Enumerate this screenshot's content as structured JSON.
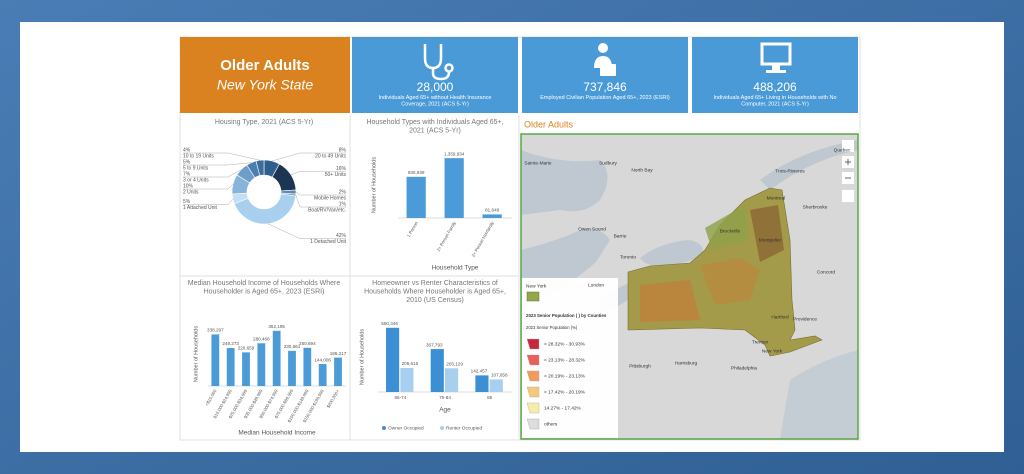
{
  "header": {
    "title": "Older Adults",
    "subtitle": "New York State"
  },
  "kpis": [
    {
      "value": "28,000",
      "label": "Individuals Aged 65+ without Health Insurance Coverage, 2021 (ACS 5-Yr)"
    },
    {
      "value": "737,846",
      "label": "Employed Civilian Population Aged 65+, 2023 (ESRI)"
    },
    {
      "value": "488,206",
      "label": "Individuals Aged 65+ Living in Households with No Computer, 2021 (ACS 5-Yr)"
    }
  ],
  "chart_data": [
    {
      "type": "pie",
      "title": "Housing Type, 2021 (ACS 5-Yr)",
      "categories": [
        "20 to 49 Units",
        "50+ Units",
        "Mobile Homes",
        "Boat/RV/Van/etc.",
        "1 Detached Unit",
        "1 Attached Unit",
        "2 Units",
        "3 or 4 Units",
        "5 to 9 Units",
        "10 to 19 Units"
      ],
      "values": [
        8,
        16,
        2,
        1,
        42,
        5,
        10,
        7,
        5,
        4
      ],
      "value_labels": [
        "8%",
        "16%",
        "2%",
        "1%",
        "42%",
        "5%",
        "10%",
        "7%",
        "5%",
        "4%"
      ],
      "colors": [
        "#2f5f8f",
        "#1c3553",
        "#5b89b5",
        "#7ea6cc",
        "#a9cfee",
        "#c6def2",
        "#88b3da",
        "#6d9dc9",
        "#4c7fb0",
        "#3b6d9e"
      ]
    },
    {
      "type": "bar",
      "title": "Household Types with Individuals Aged 65+, 2021 (ACS 5-Yr)",
      "y_label": "Number of Households",
      "x_label": "Household Type",
      "categories": [
        "1 Person",
        "2+ Person Family",
        "2+ Person Nonfamily"
      ],
      "values": [
        935939,
        1359934,
        81649
      ],
      "value_labels": [
        "935,939",
        "1,359,934",
        "81,649"
      ],
      "color": "#4a9bd8",
      "ylim": [
        0,
        1500000
      ]
    },
    {
      "type": "bar",
      "title": "Median Household Income of Households Where Householder is Aged 65+, 2023 (ESRI)",
      "y_label": "Number of Households",
      "x_label": "Median Household Income",
      "categories": [
        "<$15,000",
        "$15,000-$24,999",
        "$25,000-$34,999",
        "$35,000-$49,999",
        "$50,000-$74,999",
        "$75,000-$99,999",
        "$100,000-$149,999",
        "$150,000-$199,999",
        "$200,000+"
      ],
      "values": [
        338297,
        249273,
        220659,
        280468,
        362195,
        230661,
        250694,
        144006,
        186217
      ],
      "value_labels": [
        "338,297",
        "249,273",
        "220,659",
        "280,468",
        "362,195",
        "230,661",
        "250,694",
        "144,006",
        "186,217"
      ],
      "color": "#4a9bd8",
      "ylim": [
        0,
        420000
      ]
    },
    {
      "type": "bar",
      "title": "Homeowner vs Renter Characteristics of Households Where Householder is Aged 65+, 2010 (US Census)",
      "y_label": "Number of Households",
      "x_label": "Age",
      "categories": [
        "65-74",
        "75-84",
        "85"
      ],
      "series": [
        {
          "name": "Owner Occupied",
          "color": "#3c8fd3",
          "values": [
            550346,
            367793,
            142457
          ],
          "value_labels": [
            "550,346",
            "367,793",
            "142,457"
          ]
        },
        {
          "name": "Renter Occupied",
          "color": "#a7d0f0",
          "values": [
            205615,
            203129,
            107658
          ],
          "value_labels": [
            "205,615",
            "203,129",
            "107,658"
          ]
        }
      ],
      "ylim": [
        0,
        600000
      ],
      "legend": "bottom"
    }
  ],
  "map": {
    "title": "Older Adults",
    "layer": "New York",
    "legend_title": "2023 Senior Population ( ) by Counties",
    "legend_subtitle": "2023 Senior Population (%)",
    "classes": [
      {
        "label": "> 28.32% - 30.93%",
        "color": "#c8283c"
      },
      {
        "label": "> 23.13% - 28.32%",
        "color": "#e8605a"
      },
      {
        "label": "> 20.19% - 23.13%",
        "color": "#f29a5c"
      },
      {
        "label": "> 17.42% - 20.19%",
        "color": "#f6c97a"
      },
      {
        "label": "14.27% - 17.42%",
        "color": "#f8eda4"
      },
      {
        "label": "others",
        "color": "#dddddd"
      }
    ],
    "places": [
      "Sainte-Marie",
      "Sudbury",
      "North Bay",
      "Quebec",
      "Trois-Rivieres",
      "Montreal",
      "Sherbrooke",
      "Owen Sound",
      "Barrie",
      "Toronto",
      "Brockville",
      "Montpelier",
      "London",
      "Concord",
      "Hartford",
      "Providence",
      "New York",
      "Pittsburgh",
      "Harrisburg",
      "Philadelphia",
      "Trenton"
    ]
  }
}
